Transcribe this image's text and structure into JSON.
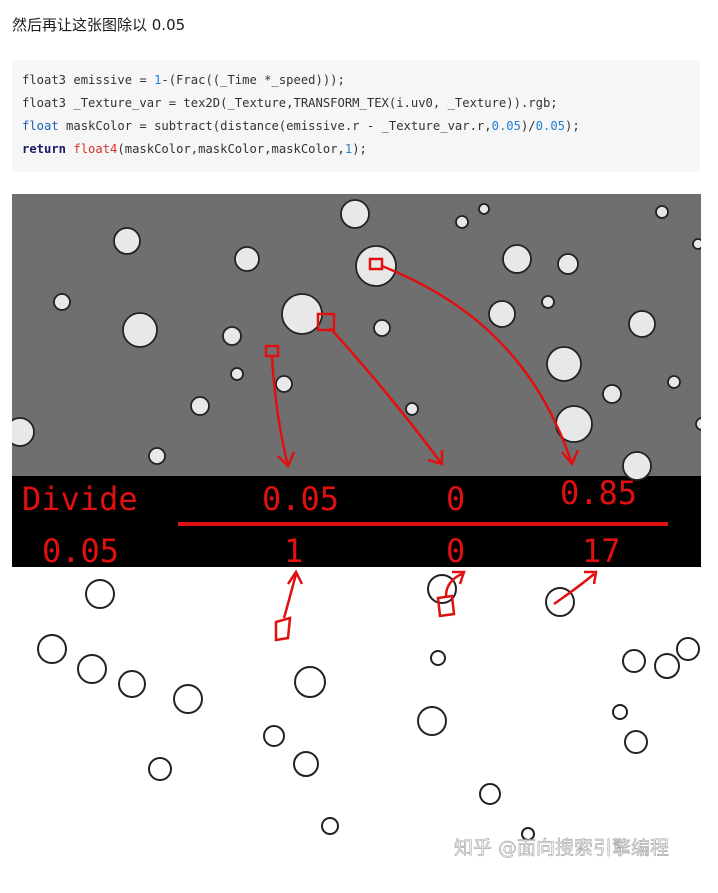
{
  "paragraph": "然后再让这张图除以 0.05",
  "code": {
    "lines": [
      [
        "float3 emissive = ",
        "1",
        "-(Frac((_Time *_speed)));"
      ],
      [
        "float3 _Texture_var = tex2D(_Texture,TRANSFORM_TEX(i.uv0, _Texture)).rgb;"
      ],
      [
        "float",
        " maskColor = subtract(distance(emissive.r - _Texture_var.r,",
        "0.05",
        ")/",
        "0.05",
        ");"
      ],
      [
        "return",
        " ",
        "float4",
        "(maskColor,maskColor,maskColor,",
        "1",
        ");"
      ]
    ]
  },
  "image": {
    "annotations": {
      "divide": "Divide",
      "divisor": "0.05",
      "top": [
        "0.05",
        "0",
        "0.85"
      ],
      "bottom": [
        "1",
        "0",
        "17"
      ]
    },
    "watermark": "知乎 @面向搜索引擎编程"
  }
}
